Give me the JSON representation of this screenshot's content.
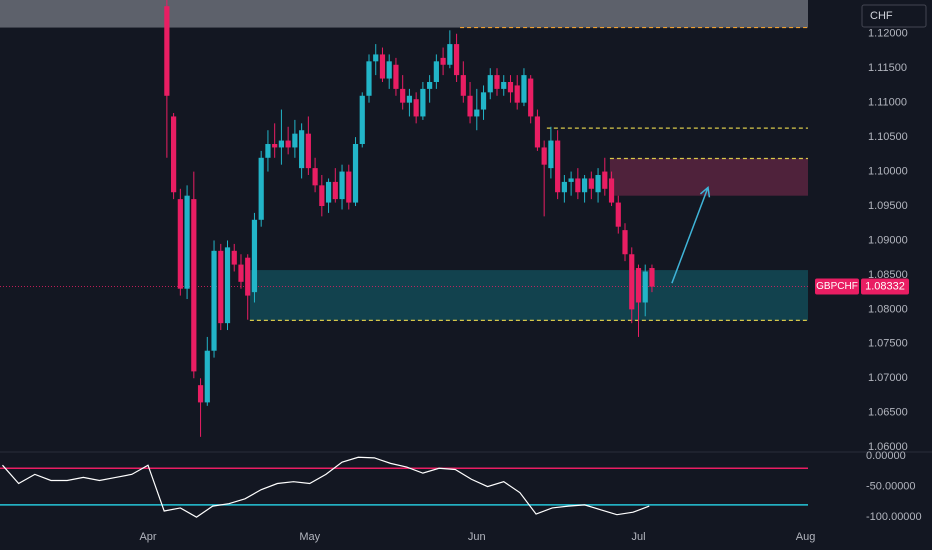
{
  "chart_data": {
    "type": "candlestick",
    "symbol": "GBPCHF",
    "currency": "CHF",
    "last_price": 1.08332,
    "last_price_label": "1.08332",
    "up_color": "#22b5c8",
    "down_color": "#e91e63",
    "xlim": [
      -27.46,
      122.45
    ],
    "xticks": [
      {
        "value": 0,
        "label": "Apr"
      },
      {
        "value": 30,
        "label": "May"
      },
      {
        "value": 61,
        "label": "Jun"
      },
      {
        "value": 91,
        "label": "Jul"
      },
      {
        "value": 122,
        "label": "Aug"
      }
    ],
    "ylim": [
      1.0593,
      1.1249
    ],
    "yticks": [
      {
        "value": 1.06,
        "label": "1.06000"
      },
      {
        "value": 1.065,
        "label": "1.06500"
      },
      {
        "value": 1.07,
        "label": "1.07000"
      },
      {
        "value": 1.075,
        "label": "1.07500"
      },
      {
        "value": 1.08,
        "label": "1.08000"
      },
      {
        "value": 1.085,
        "label": "1.08500"
      },
      {
        "value": 1.09,
        "label": "1.09000"
      },
      {
        "value": 1.095,
        "label": "1.09500"
      },
      {
        "value": 1.1,
        "label": "1.10000"
      },
      {
        "value": 1.105,
        "label": "1.10500"
      },
      {
        "value": 1.11,
        "label": "1.11000"
      },
      {
        "value": 1.115,
        "label": "1.11500"
      },
      {
        "value": 1.12,
        "label": "1.12000"
      }
    ],
    "candles": {
      "x": [
        3.5,
        4.75,
        6,
        7.25,
        8.5,
        9.75,
        11,
        12.25,
        13.5,
        14.75,
        16,
        17.25,
        18.5,
        19.75,
        21,
        22.25,
        23.5,
        24.75,
        26,
        27.25,
        28.5,
        29.75,
        31,
        32.25,
        33.5,
        34.75,
        36,
        37.25,
        38.5,
        39.75,
        41,
        42.25,
        43.5,
        44.75,
        46,
        47.25,
        48.5,
        49.75,
        51,
        52.25,
        53.5,
        54.75,
        56,
        57.25,
        58.5,
        59.75,
        61,
        62.25,
        63.5,
        64.75,
        66,
        67.25,
        68.5,
        69.75,
        71,
        72.25,
        73.5,
        74.75,
        76,
        77.25,
        78.5,
        79.75,
        81,
        82.25,
        83.5,
        84.75,
        86,
        87.25,
        88.5,
        89.75,
        91,
        92.25,
        93.5
      ],
      "open": [
        1.124,
        1.108,
        1.096,
        1.083,
        1.096,
        1.069,
        1.0665,
        1.074,
        1.0885,
        1.078,
        1.0885,
        1.0865,
        1.0875,
        1.0825,
        1.093,
        1.102,
        1.104,
        1.1035,
        1.1045,
        1.1035,
        1.1005,
        1.1055,
        1.1005,
        1.098,
        1.0955,
        1.0985,
        1.096,
        1.1,
        1.0955,
        1.104,
        1.111,
        1.116,
        1.117,
        1.1135,
        1.1155,
        1.112,
        1.11,
        1.1105,
        1.108,
        1.112,
        1.113,
        1.1165,
        1.1155,
        1.1185,
        1.114,
        1.111,
        1.108,
        1.109,
        1.1115,
        1.114,
        1.112,
        1.113,
        1.1125,
        1.11,
        1.1135,
        1.108,
        1.1035,
        1.1005,
        1.1045,
        1.097,
        1.0985,
        1.099,
        1.097,
        1.099,
        1.097,
        1.1,
        1.099,
        1.0955,
        1.0915,
        1.088,
        1.086,
        1.081,
        1.086
      ],
      "high": [
        1.1249,
        1.1085,
        1.0975,
        1.098,
        1.1,
        1.07,
        1.076,
        1.09,
        1.0895,
        1.09,
        1.0895,
        1.088,
        1.088,
        1.094,
        1.103,
        1.106,
        1.107,
        1.109,
        1.1065,
        1.1075,
        1.107,
        1.108,
        1.102,
        1.0995,
        1.099,
        1.1005,
        1.101,
        1.101,
        1.105,
        1.1115,
        1.117,
        1.1185,
        1.118,
        1.117,
        1.1165,
        1.114,
        1.112,
        1.1115,
        1.113,
        1.114,
        1.117,
        1.118,
        1.1205,
        1.12,
        1.116,
        1.113,
        1.112,
        1.1125,
        1.115,
        1.115,
        1.114,
        1.114,
        1.114,
        1.115,
        1.114,
        1.109,
        1.1045,
        1.1065,
        1.106,
        1.0995,
        1.1,
        1.1005,
        1.0995,
        1.1,
        1.1005,
        1.102,
        1.1,
        1.0965,
        1.0925,
        1.089,
        1.0865,
        1.0865,
        1.0865
      ],
      "low": [
        1.102,
        1.096,
        1.082,
        1.0815,
        1.07,
        1.0615,
        1.066,
        1.073,
        1.077,
        1.077,
        1.0855,
        1.083,
        1.0785,
        1.081,
        1.092,
        1.1,
        1.102,
        1.101,
        1.1025,
        1.102,
        1.099,
        1.0995,
        1.097,
        1.0935,
        1.094,
        1.0955,
        1.0945,
        1.0945,
        1.095,
        1.1035,
        1.11,
        1.114,
        1.113,
        1.112,
        1.111,
        1.109,
        1.108,
        1.107,
        1.1075,
        1.11,
        1.112,
        1.114,
        1.115,
        1.113,
        1.11,
        1.107,
        1.106,
        1.1075,
        1.1105,
        1.111,
        1.111,
        1.11,
        1.109,
        1.1095,
        1.107,
        1.103,
        1.0935,
        1.099,
        1.096,
        1.0955,
        1.0965,
        1.096,
        1.0955,
        1.096,
        1.0955,
        1.0965,
        1.095,
        1.091,
        1.087,
        1.078,
        1.076,
        1.079,
        1.0825
      ],
      "close": [
        1.111,
        1.097,
        1.083,
        1.0965,
        1.071,
        1.0665,
        1.074,
        1.0885,
        1.078,
        1.089,
        1.0865,
        1.084,
        1.082,
        1.093,
        1.102,
        1.104,
        1.1035,
        1.1045,
        1.1035,
        1.1055,
        1.106,
        1.1005,
        1.098,
        1.095,
        1.0985,
        1.096,
        1.1,
        1.0955,
        1.104,
        1.111,
        1.116,
        1.117,
        1.1135,
        1.116,
        1.112,
        1.11,
        1.111,
        1.108,
        1.112,
        1.113,
        1.116,
        1.1155,
        1.1185,
        1.114,
        1.111,
        1.108,
        1.109,
        1.1115,
        1.114,
        1.112,
        1.113,
        1.1115,
        1.11,
        1.114,
        1.108,
        1.1035,
        1.101,
        1.1045,
        1.097,
        1.0985,
        1.099,
        1.097,
        1.099,
        1.0975,
        1.0995,
        1.0975,
        1.0955,
        1.092,
        1.088,
        1.08,
        1.081,
        1.0855,
        1.0833
      ]
    },
    "zones": [
      {
        "x0": -27.46,
        "y": [
          1.1209,
          1.1249
        ],
        "color": "#6b6e78"
      },
      {
        "x0": 85.7,
        "y": [
          1.0965,
          1.1019
        ],
        "color": "#5a2440"
      },
      {
        "x0": 18.9,
        "y": [
          1.0784,
          1.0857
        ],
        "color": "#134a56"
      }
    ],
    "dashed_lines": [
      {
        "x0": 57.9,
        "y": 1.1209,
        "color": "#f0a030"
      },
      {
        "x0": 74,
        "y": 1.1063,
        "color": "#d8c84a"
      },
      {
        "x0": 85.7,
        "y": 1.1019,
        "color": "#d8c84a"
      },
      {
        "x0": 18.9,
        "y": 1.0784,
        "color": "#d8c84a"
      }
    ],
    "arrow": {
      "from": [
        97.2,
        1.0838
      ],
      "to": [
        103.9,
        1.0977
      ],
      "color": "#3fb4d8"
    },
    "indicator": {
      "ylim": [
        -108,
        6.6
      ],
      "yticks": [
        {
          "value": 0,
          "label": "0.00000"
        },
        {
          "value": -50,
          "label": "-50.00000"
        },
        {
          "value": -100,
          "label": "-100.00000"
        }
      ],
      "levels": [
        {
          "value": -20,
          "color": "#e91e63"
        },
        {
          "value": -80,
          "color": "#26c6da"
        }
      ],
      "color": "#ffffff",
      "x": [
        -27,
        -24,
        -21,
        -18,
        -15,
        -12,
        -9,
        -6,
        -3,
        0,
        3,
        6,
        9,
        12,
        15,
        18,
        21,
        24,
        27,
        30,
        33,
        36,
        39,
        42,
        45,
        48,
        51,
        54,
        57,
        60,
        63,
        66,
        69,
        72,
        75,
        78,
        81,
        84,
        87,
        90,
        93
      ],
      "values": [
        -15,
        -45,
        -30,
        -40,
        -40,
        -35,
        -40,
        -35,
        -30,
        -15,
        -90,
        -85,
        -100,
        -82,
        -78,
        -70,
        -55,
        -45,
        -42,
        -45,
        -30,
        -10,
        -2,
        -3,
        -12,
        -18,
        -28,
        -20,
        -22,
        -38,
        -50,
        -42,
        -60,
        -95,
        -85,
        -82,
        -80,
        -88,
        -96,
        -92,
        -82
      ]
    }
  }
}
